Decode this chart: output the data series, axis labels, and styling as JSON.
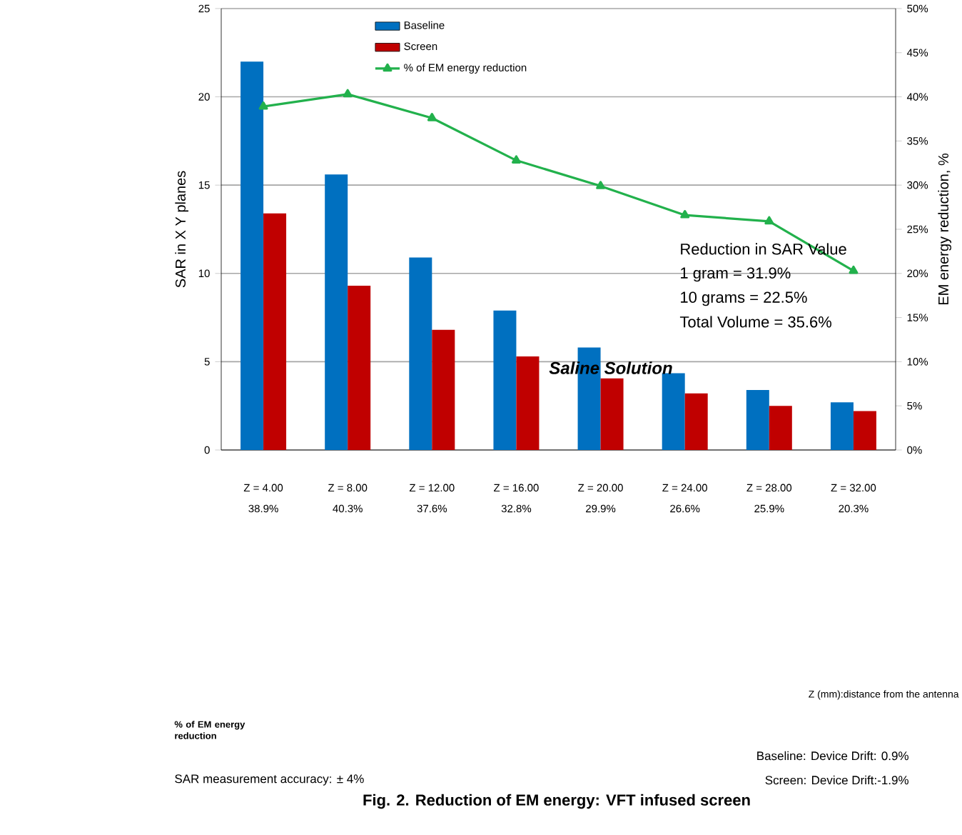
{
  "chart_data": {
    "type": "bar",
    "title": "Fig. 2.  Reduction of EM energy: VFT infused screen",
    "ylabel": "SAR in X Y planes",
    "y2label": "EM energy reduction, %",
    "categories": [
      "Z = 4.00",
      "Z = 8.00",
      "Z = 12.00",
      "Z = 16.00",
      "Z = 20.00",
      "Z = 24.00",
      "Z = 28.00",
      "Z = 32.00"
    ],
    "series": [
      {
        "name": "Baseline",
        "color": "#0070c0",
        "values": [
          22,
          15.6,
          10.9,
          7.9,
          5.8,
          4.35,
          3.4,
          2.7
        ]
      },
      {
        "name": "Screen",
        "color": "#c00000",
        "values": [
          13.4,
          9.3,
          6.8,
          5.3,
          4.05,
          3.2,
          2.5,
          2.2
        ]
      },
      {
        "name": "% of EM energy reduction",
        "type": "line",
        "axis": "y2",
        "color": "#22b14c",
        "marker": "triangle",
        "values": [
          38.9,
          40.3,
          37.6,
          32.8,
          29.9,
          26.6,
          25.9,
          20.3
        ],
        "value_labels": [
          "38.9%",
          "40.3%",
          "37.6%",
          "32.8%",
          "29.9%",
          "26.6%",
          "25.9%",
          "20.3%"
        ]
      }
    ],
    "ylim": [
      0,
      25
    ],
    "yticks": [
      0,
      5,
      10,
      15,
      20,
      25
    ],
    "y2lim": [
      0,
      50
    ],
    "y2ticks": [
      {
        "value": 0,
        "label": "0%"
      },
      {
        "value": 5,
        "label": "5%"
      },
      {
        "value": 10,
        "label": "10%"
      },
      {
        "value": 15,
        "label": "15%"
      },
      {
        "value": 20,
        "label": "20%"
      },
      {
        "value": 25,
        "label": "25%"
      },
      {
        "value": 30,
        "label": "30%"
      },
      {
        "value": 35,
        "label": "35%"
      },
      {
        "value": 40,
        "label": "40%"
      },
      {
        "value": 45,
        "label": "45%"
      },
      {
        "value": 50,
        "label": "50%"
      }
    ],
    "grid": "y",
    "legend": "top left",
    "annotations": [
      "Reduction in SAR Value",
      "1 gram  = 31.9%",
      "10 grams = 22.5%",
      "Total Volume = 35.6%",
      "Saline Solution",
      "% of EM energy reduction",
      "SAR measurement accuracy: ± 4%",
      "Baseline: Device Drift:  0.9%",
      "Screen: Device Drift:-1.9%",
      "Z (mm):distance from the antenna"
    ]
  }
}
